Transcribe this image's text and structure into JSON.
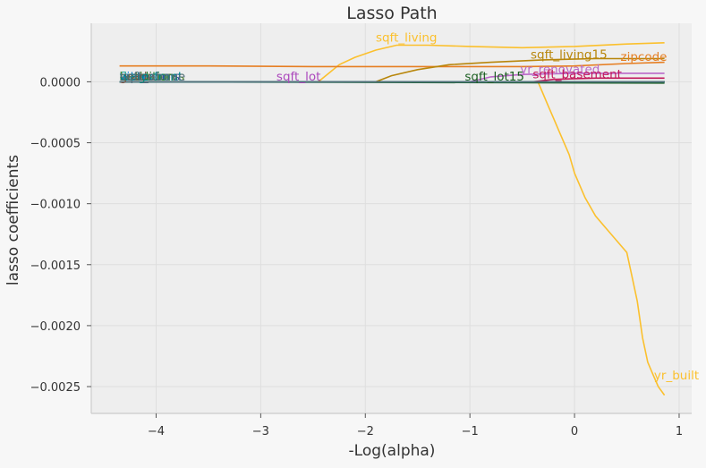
{
  "chart_data": {
    "type": "line",
    "title": "Lasso Path",
    "xlabel": "-Log(alpha)",
    "ylabel": "lasso coefficients",
    "xlim": [
      -4.62,
      1.12
    ],
    "ylim": [
      -0.00272,
      0.00048
    ],
    "xticks": [
      -4,
      -3,
      -2,
      -1,
      0,
      1
    ],
    "xtick_labels": [
      "−4",
      "−3",
      "−2",
      "−1",
      "0",
      "1"
    ],
    "yticks": [
      0.0,
      -0.0005,
      -0.001,
      -0.0015,
      -0.002,
      -0.0025
    ],
    "ytick_labels": [
      "0.0000",
      "−0.0005",
      "−0.0010",
      "−0.0015",
      "−0.0020",
      "−0.0025"
    ],
    "grid": true,
    "legend": "none",
    "series": [
      {
        "name": "yr_built",
        "color": "#fbc02d",
        "points": [
          [
            -4.35,
            0
          ],
          [
            -0.35,
            0
          ],
          [
            -0.3,
            -0.0001
          ],
          [
            -0.25,
            -0.0002
          ],
          [
            -0.2,
            -0.0003
          ],
          [
            -0.15,
            -0.0004
          ],
          [
            -0.05,
            -0.0006
          ],
          [
            0.0,
            -0.00075
          ],
          [
            0.1,
            -0.00095
          ],
          [
            0.2,
            -0.0011
          ],
          [
            0.3,
            -0.0012
          ],
          [
            0.4,
            -0.0013
          ],
          [
            0.5,
            -0.0014
          ],
          [
            0.55,
            -0.0016
          ],
          [
            0.6,
            -0.0018
          ],
          [
            0.65,
            -0.0021
          ],
          [
            0.7,
            -0.0023
          ],
          [
            0.75,
            -0.0024
          ],
          [
            0.8,
            -0.0025
          ],
          [
            0.86,
            -0.00257
          ]
        ],
        "label": {
          "x": 0.76,
          "y": -0.00244
        }
      },
      {
        "name": "sqft_living",
        "color": "#fbc02d",
        "points": [
          [
            -4.35,
            0
          ],
          [
            -2.45,
            0
          ],
          [
            -2.35,
            7e-05
          ],
          [
            -2.25,
            0.00014
          ],
          [
            -2.1,
            0.0002
          ],
          [
            -1.9,
            0.00026
          ],
          [
            -1.7,
            0.0003
          ],
          [
            -1.4,
            0.0003
          ],
          [
            -1.0,
            0.00029
          ],
          [
            -0.5,
            0.00028
          ],
          [
            0.0,
            0.00029
          ],
          [
            0.5,
            0.00031
          ],
          [
            0.86,
            0.00032
          ]
        ],
        "label": {
          "x": -1.9,
          "y": 0.00033
        }
      },
      {
        "name": "zipcode",
        "color": "#e67e22",
        "points": [
          [
            -4.35,
            0.00013
          ],
          [
            -3.5,
            0.00013
          ],
          [
            -2.5,
            0.000125
          ],
          [
            -1.5,
            0.000125
          ],
          [
            -0.5,
            0.000125
          ],
          [
            0.0,
            0.00013
          ],
          [
            0.5,
            0.00015
          ],
          [
            0.86,
            0.00016
          ]
        ],
        "label": {
          "x": 0.44,
          "y": 0.00017
        }
      },
      {
        "name": "sqft_living15",
        "color": "#b8860b",
        "points": [
          [
            -4.35,
            0
          ],
          [
            -1.9,
            0
          ],
          [
            -1.75,
            5e-05
          ],
          [
            -1.5,
            0.0001
          ],
          [
            -1.2,
            0.00014
          ],
          [
            -0.8,
            0.00016
          ],
          [
            -0.3,
            0.00018
          ],
          [
            0.2,
            0.00019
          ],
          [
            0.86,
            0.00019
          ]
        ],
        "label": {
          "x": -0.42,
          "y": 0.00019
        }
      },
      {
        "name": "yr_renovated",
        "color": "#ba68c8",
        "points": [
          [
            -4.35,
            0
          ],
          [
            -1.0,
            0
          ],
          [
            -0.8,
            4e-05
          ],
          [
            -0.5,
            6e-05
          ],
          [
            0.0,
            7e-05
          ],
          [
            0.5,
            7e-05
          ],
          [
            0.86,
            7e-05
          ]
        ],
        "label": {
          "x": -0.52,
          "y": 7e-05
        }
      },
      {
        "name": "sqft_basement",
        "color": "#c2185b",
        "points": [
          [
            -4.35,
            0
          ],
          [
            -0.4,
            0
          ],
          [
            -0.2,
            2e-05
          ],
          [
            0.2,
            3e-05
          ],
          [
            0.86,
            3e-05
          ]
        ],
        "label": {
          "x": -0.4,
          "y": 3e-05
        }
      },
      {
        "name": "sqft_lot",
        "color": "#ab47bc",
        "points": [
          [
            -4.35,
            0
          ],
          [
            0.86,
            0
          ]
        ],
        "label": {
          "x": -2.85,
          "y": 1e-05
        }
      },
      {
        "name": "sqft_lot15",
        "color": "#1b5e20",
        "points": [
          [
            -4.35,
            0
          ],
          [
            0.86,
            -1e-05
          ]
        ],
        "label": {
          "x": -1.05,
          "y": 1e-05
        }
      },
      {
        "name": "long",
        "color": "#00897b",
        "points": [
          [
            -4.35,
            0
          ],
          [
            0.86,
            0
          ]
        ],
        "label": {
          "x": -4.35,
          "y": 1e-05
        }
      },
      {
        "name": "lat",
        "color": "#0277bd",
        "points": [
          [
            -4.35,
            0
          ],
          [
            0.86,
            0
          ]
        ],
        "label": {
          "x": -4.35,
          "y": 1e-05
        }
      },
      {
        "name": "floors",
        "color": "#26a69a",
        "points": [
          [
            -4.35,
            0
          ],
          [
            0.86,
            0
          ]
        ],
        "label": {
          "x": -4.35,
          "y": 1e-05
        }
      },
      {
        "name": "bedrooms",
        "color": "#3949ab",
        "points": [
          [
            -4.35,
            0
          ],
          [
            0.86,
            0
          ]
        ],
        "label": {
          "x": -4.35,
          "y": 1e-05
        }
      },
      {
        "name": "bathrooms",
        "color": "#558b2f",
        "points": [
          [
            -4.35,
            0
          ],
          [
            0.86,
            0
          ]
        ],
        "label": {
          "x": -4.35,
          "y": 1e-05
        }
      },
      {
        "name": "view",
        "color": "#1e88e5",
        "points": [
          [
            -4.35,
            0
          ],
          [
            0.86,
            0
          ]
        ],
        "label": {
          "x": -4.35,
          "y": 1e-05
        }
      },
      {
        "name": "grade",
        "color": "#795548",
        "points": [
          [
            -4.35,
            0
          ],
          [
            0.86,
            0
          ]
        ],
        "label": {
          "x": -4.35,
          "y": 1e-05
        }
      },
      {
        "name": "condition",
        "color": "#2e7d32",
        "points": [
          [
            -4.35,
            0
          ],
          [
            0.86,
            0
          ]
        ],
        "label": {
          "x": -4.35,
          "y": 1e-05
        }
      },
      {
        "name": "waterfront",
        "color": "#00838f",
        "points": [
          [
            -4.35,
            0
          ],
          [
            0.86,
            0
          ]
        ],
        "label": {
          "x": -4.35,
          "y": 1e-05
        }
      },
      {
        "name": "sqft_above",
        "color": "#546e7a",
        "points": [
          [
            -4.35,
            0
          ],
          [
            0.86,
            0
          ]
        ],
        "label": {
          "x": -4.35,
          "y": 1e-05
        }
      }
    ]
  }
}
